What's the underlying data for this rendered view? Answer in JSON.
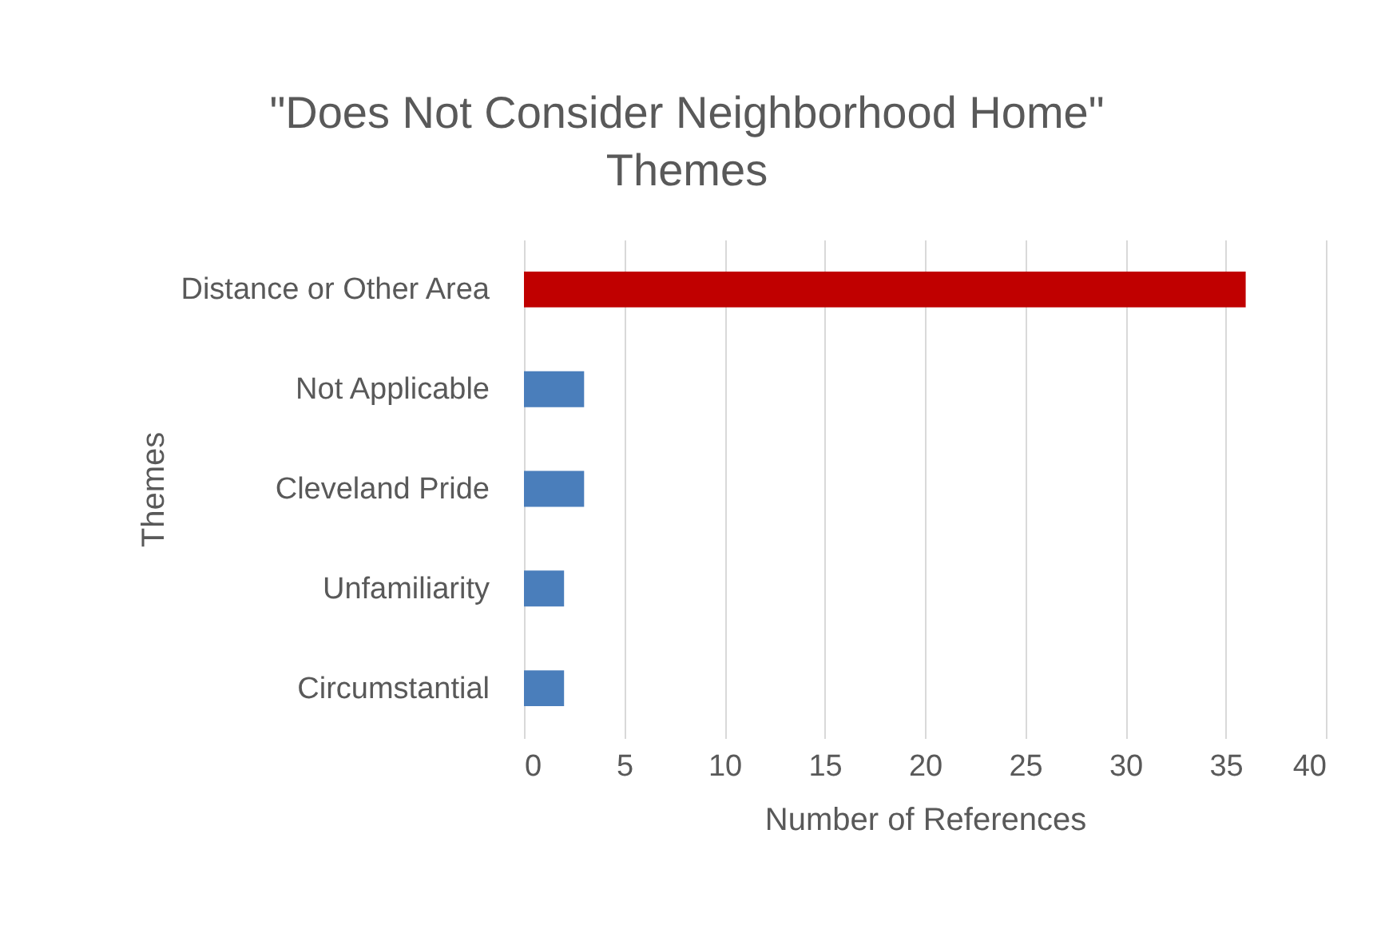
{
  "chart_data": {
    "type": "bar",
    "orientation": "horizontal",
    "title": "\"Does Not Consider Neighborhood Home\" Themes",
    "xlabel": "Number of References",
    "ylabel": "Themes",
    "categories": [
      "Distance or Other Area",
      "Not Applicable",
      "Cleveland Pride",
      "Unfamiliarity",
      "Circumstantial"
    ],
    "values": [
      36,
      3,
      3,
      2,
      2
    ],
    "colors": [
      "#c00000",
      "#4a7ebb",
      "#4a7ebb",
      "#4a7ebb",
      "#4a7ebb"
    ],
    "xlim": [
      0,
      40
    ],
    "xticks": [
      0,
      5,
      10,
      15,
      20,
      25,
      30,
      35,
      40
    ],
    "grid": "x"
  }
}
